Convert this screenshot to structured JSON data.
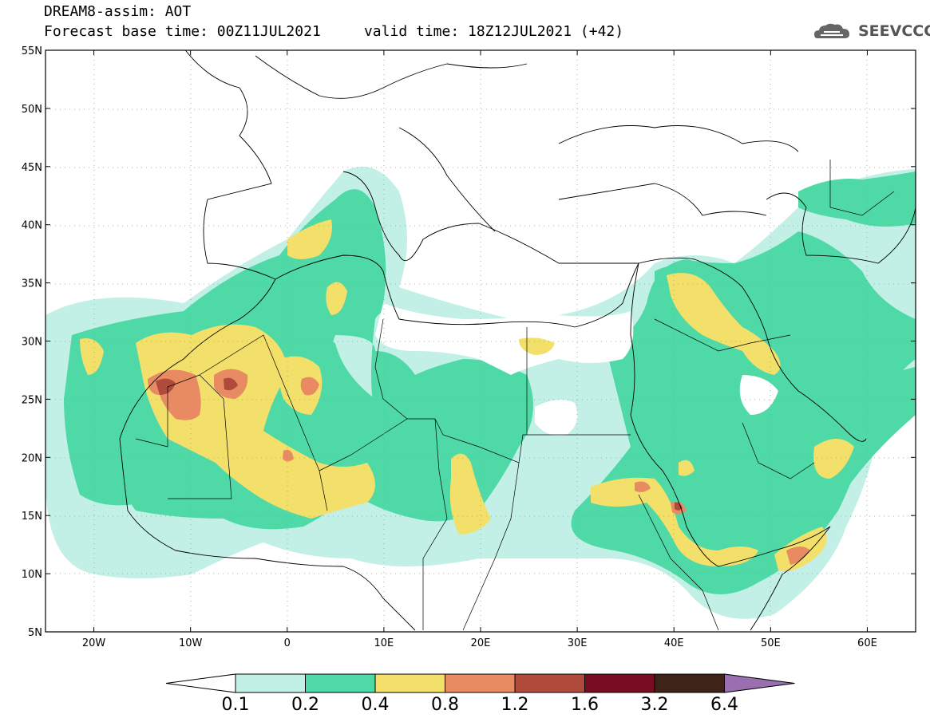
{
  "header": {
    "title_line1": "DREAM8-assim: AOT",
    "title_line2": "Forecast base time: 00Z11JUL2021     valid time: 18Z12JUL2021 (+42)",
    "logo_text": "SEEVCCC",
    "logo_icon": "cloud-icon"
  },
  "map": {
    "variable": "AOT",
    "lon_range": [
      -25,
      65
    ],
    "lat_range": [
      5,
      55
    ],
    "lat_labels": [
      "55N",
      "50N",
      "45N",
      "40N",
      "35N",
      "30N",
      "25N",
      "20N",
      "15N",
      "10N",
      "5N"
    ],
    "lon_labels": [
      "20W",
      "10W",
      "0",
      "10E",
      "20E",
      "30E",
      "40E",
      "50E",
      "60E"
    ],
    "grid": "dotted",
    "colors": {
      "c1": "#c2f0e6",
      "c2": "#4fd9a7",
      "c3": "#f2e06a",
      "c4": "#e88a62",
      "c5": "#b04a3a",
      "c6": "#7a0c22",
      "c7": "#3d2416",
      "c8": "#9a6fb0"
    }
  },
  "colorbar": {
    "labels": [
      "0.1",
      "0.2",
      "0.4",
      "0.8",
      "1.2",
      "1.6",
      "3.2",
      "6.4"
    ],
    "colors": [
      "#c2f0e6",
      "#4fd9a7",
      "#f2e06a",
      "#e88a62",
      "#b04a3a",
      "#7a0c22",
      "#3d2416"
    ],
    "under_color": "#ffffff",
    "over_color": "#9a6fb0"
  }
}
